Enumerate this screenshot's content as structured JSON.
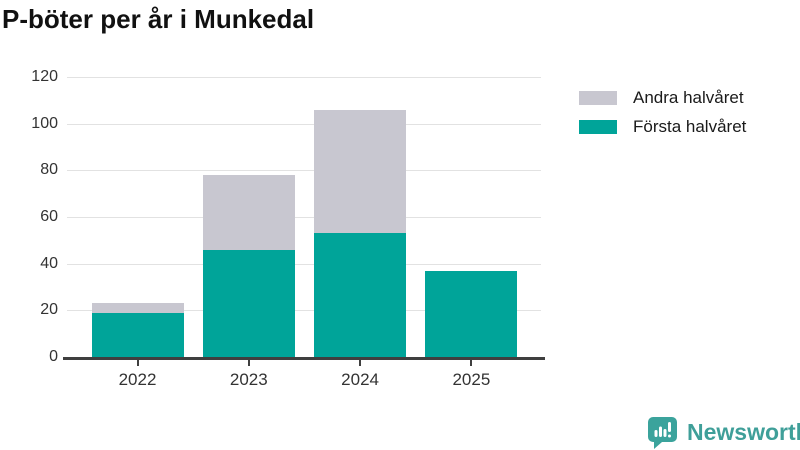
{
  "chart_data": {
    "type": "bar",
    "stacked": true,
    "title": "P-böter per år i Munkedal",
    "categories": [
      "2022",
      "2023",
      "2024",
      "2025"
    ],
    "series": [
      {
        "name": "Andra halvåret",
        "color": "#c8c7d0",
        "values": [
          4,
          32,
          53,
          0
        ]
      },
      {
        "name": "Första halvåret",
        "color": "#00a499",
        "values": [
          19,
          46,
          53,
          37
        ]
      }
    ],
    "totals": [
      23,
      78,
      106,
      37
    ],
    "xlabel": "",
    "ylabel": "",
    "ylim": [
      0,
      120
    ],
    "yticks": [
      0,
      20,
      40,
      60,
      80,
      100,
      120
    ],
    "grid": "horizontal",
    "legend_position": "right",
    "axis_color": "#3f3f3f",
    "gridline_color": "#e2e2e2"
  },
  "branding": {
    "wordmark": "Newsworthy",
    "color": "#3f9f99",
    "icon": "newsworthy-bar-chart-speech-bubble"
  }
}
